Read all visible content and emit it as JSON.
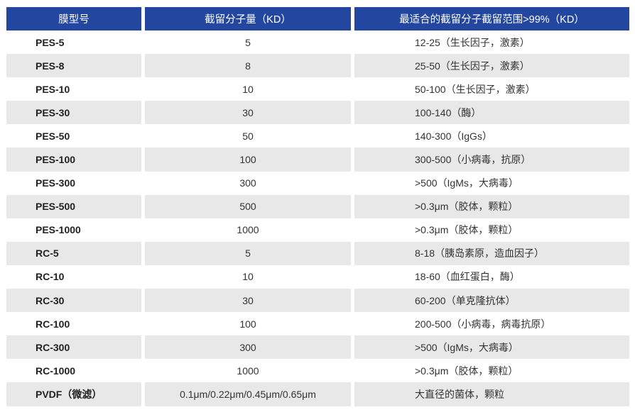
{
  "header": {
    "model": "膜型号",
    "mwco": "截留分子量（KD）",
    "range": "最适合的截留分子截留范围>99%（KD）"
  },
  "colors": {
    "header_bg": "#2346a0",
    "alt_row_bg": "#e8e8e8"
  },
  "rows": [
    {
      "model": "PES-5",
      "mwco": "5",
      "range": "12-25（生长因子，激素）"
    },
    {
      "model": "PES-8",
      "mwco": "8",
      "range": "25-50（生长因子，激素）"
    },
    {
      "model": "PES-10",
      "mwco": "10",
      "range": "50-100（生长因子，激素）"
    },
    {
      "model": "PES-30",
      "mwco": "30",
      "range": "100-140（酶）"
    },
    {
      "model": "PES-50",
      "mwco": "50",
      "range": "140-300（IgGs）"
    },
    {
      "model": "PES-100",
      "mwco": "100",
      "range": "300-500（小病毒，抗原）"
    },
    {
      "model": "PES-300",
      "mwco": "300",
      "range": ">500（IgMs，大病毒）"
    },
    {
      "model": "PES-500",
      "mwco": "500",
      "range": ">0.3μm（胶体，颗粒）"
    },
    {
      "model": "PES-1000",
      "mwco": "1000",
      "range": ">0.3μm（胶体，颗粒）"
    },
    {
      "model": "RC-5",
      "mwco": "5",
      "range": "8-18（胰岛素原，造血因子）"
    },
    {
      "model": "RC-10",
      "mwco": "10",
      "range": "18-60（血红蛋白，酶）"
    },
    {
      "model": "RC-30",
      "mwco": "30",
      "range": "60-200（单克隆抗体）"
    },
    {
      "model": "RC-100",
      "mwco": "100",
      "range": "200-500（小病毒，病毒抗原）"
    },
    {
      "model": "RC-300",
      "mwco": "300",
      "range": ">500（IgMs，大病毒）"
    },
    {
      "model": "RC-1000",
      "mwco": "1000",
      "range": ">0.3μm（胶体，颗粒）"
    },
    {
      "model": "PVDF（微滤）",
      "mwco": "0.1μm/0.22μm/0.45μm/0.65μm",
      "range": "大直径的菌体，颗粒"
    }
  ]
}
